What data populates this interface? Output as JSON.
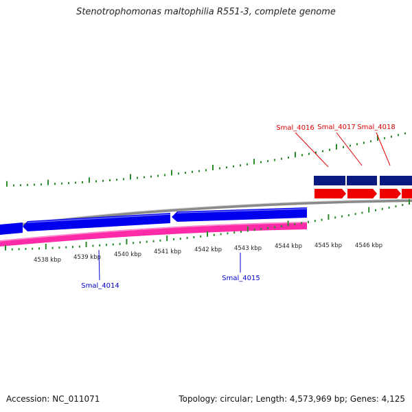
{
  "title": "Stenotrophomonas maltophilia R551-3, complete genome",
  "footer": {
    "accession": "Accession: NC_011071",
    "stats": "Topology: circular; Length: 4,573,969 bp; Genes: 4,125"
  },
  "scale_labels": [
    "4538 kbp",
    "4539 kbp",
    "4540 kbp",
    "4541 kbp",
    "4542 kbp",
    "4543 kbp",
    "4544 kbp",
    "4545 kbp",
    "4546 kbp"
  ],
  "genes": {
    "upper": [
      {
        "label": "Smal_4016",
        "color": "#dd0000"
      },
      {
        "label": "Smal_4017",
        "color": "#dd0000"
      },
      {
        "label": "Smal_4018",
        "color": "#dd0000"
      }
    ],
    "lower": [
      {
        "label": "Smal_4014",
        "color": "#0000cc"
      },
      {
        "label": "Smal_4015",
        "color": "#0000cc"
      }
    ]
  },
  "colors": {
    "forward_strand": "#ee0000",
    "reverse_strand": "#0000ee",
    "navy_track": "#0a1a80",
    "pink_track": "#ff2aa8",
    "backbone": "#8a8a8a",
    "ticks": "#2a8a2a"
  }
}
